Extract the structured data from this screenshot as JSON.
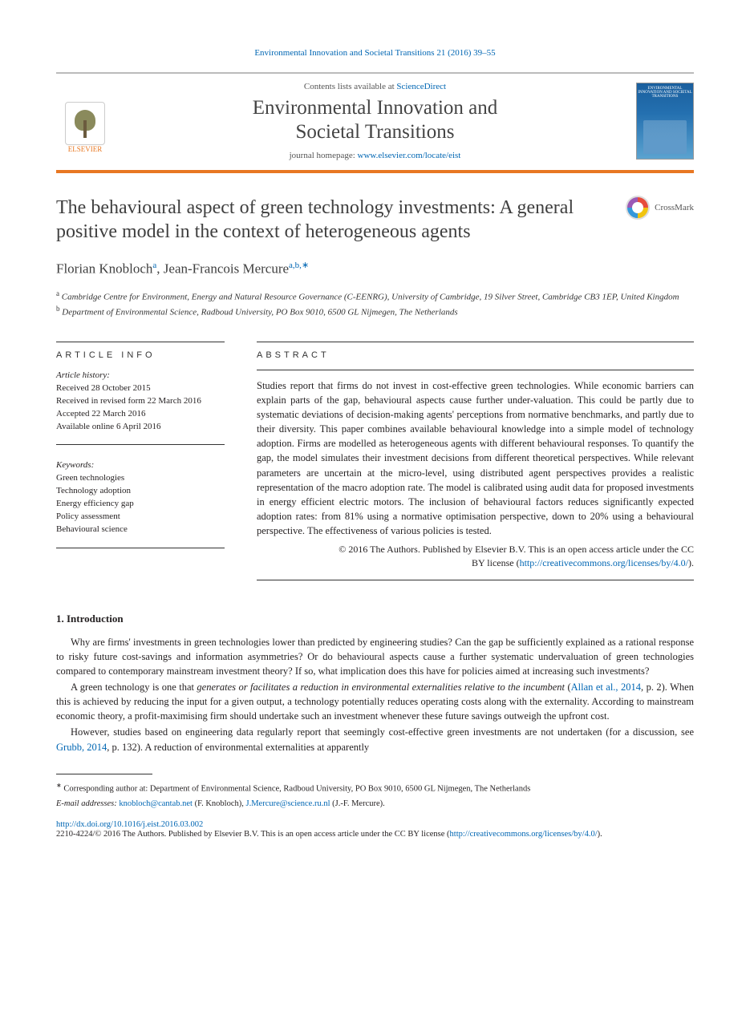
{
  "journal_ref": {
    "text": "Environmental Innovation and Societal Transitions 21 (2016) 39–55",
    "link_color": "#0066b3"
  },
  "header": {
    "contents_prefix": "Contents lists available at ",
    "contents_link": "ScienceDirect",
    "journal_name_line1": "Environmental Innovation and",
    "journal_name_line2": "Societal Transitions",
    "homepage_prefix": "journal homepage: ",
    "homepage_url": "www.elsevier.com/locate/eist",
    "publisher_logo_label": "ELSEVIER",
    "cover_label": "ENVIRONMENTAL INNOVATION AND SOCIETAL TRANSITIONS"
  },
  "article": {
    "title": "The behavioural aspect of green technology investments: A general positive model in the context of heterogeneous agents",
    "crossmark_label": "CrossMark",
    "authors_html": "Florian Knobloch",
    "author1_supers": "a",
    "author_sep": ", ",
    "author2": "Jean-Francois Mercure",
    "author2_supers": "a,b,",
    "corr_marker": "∗",
    "affiliations": [
      {
        "marker": "a",
        "text": "Cambridge Centre for Environment, Energy and Natural Resource Governance (C-EENRG), University of Cambridge, 19 Silver Street, Cambridge CB3 1EP, United Kingdom"
      },
      {
        "marker": "b",
        "text": "Department of Environmental Science, Radboud University, PO Box 9010, 6500 GL Nijmegen, The Netherlands"
      }
    ]
  },
  "info": {
    "heading": "article info",
    "history_label": "Article history:",
    "history_lines": [
      "Received 28 October 2015",
      "Received in revised form 22 March 2016",
      "Accepted 22 March 2016",
      "Available online 6 April 2016"
    ],
    "keywords_label": "Keywords:",
    "keywords": [
      "Green technologies",
      "Technology adoption",
      "Energy efficiency gap",
      "Policy assessment",
      "Behavioural science"
    ]
  },
  "abstract": {
    "heading": "abstract",
    "text": "Studies report that firms do not invest in cost-effective green technologies. While economic barriers can explain parts of the gap, behavioural aspects cause further under-valuation. This could be partly due to systematic deviations of decision-making agents' perceptions from normative benchmarks, and partly due to their diversity. This paper combines available behavioural knowledge into a simple model of technology adoption. Firms are modelled as heterogeneous agents with different behavioural responses. To quantify the gap, the model simulates their investment decisions from different theoretical perspectives. While relevant parameters are uncertain at the micro-level, using distributed agent perspectives provides a realistic representation of the macro adoption rate. The model is calibrated using audit data for proposed investments in energy efficient electric motors. The inclusion of behavioural factors reduces significantly expected adoption rates: from 81% using a normative optimisation perspective, down to 20% using a behavioural perspective. The effectiveness of various policies is tested.",
    "copyright_line1": "© 2016 The Authors. Published by Elsevier B.V. This is an open access article under the CC",
    "copyright_line2_prefix": "BY license (",
    "copyright_url": "http://creativecommons.org/licenses/by/4.0/",
    "copyright_line2_suffix": ")."
  },
  "body": {
    "section_number": "1.",
    "section_title": "Introduction",
    "paragraphs": [
      "Why are firms' investments in green technologies lower than predicted by engineering studies? Can the gap be sufficiently explained as a rational response to risky future cost-savings and information asymmetries? Or do behavioural aspects cause a further systematic undervaluation of green technologies compared to contemporary mainstream investment theory? If so, what implication does this have for policies aimed at increasing such investments?",
      "A green technology is one that <em>generates or facilitates a reduction in environmental externalities relative to the incumbent</em> (<a>Allan et al., 2014</a>, p. 2). When this is achieved by reducing the input for a given output, a technology potentially reduces operating costs along with the externality. According to mainstream economic theory, a profit-maximising firm should undertake such an investment whenever these future savings outweigh the upfront cost.",
      "However, studies based on engineering data regularly report that seemingly cost-effective green investments are not undertaken (for a discussion, see <a>Grubb, 2014</a>, p. 132). A reduction of environmental externalities at apparently"
    ]
  },
  "footnotes": {
    "corr_marker": "∗",
    "corr_text": "Corresponding author at: Department of Environmental Science, Radboud University, PO Box 9010, 6500 GL Nijmegen, The Netherlands",
    "email_label": "E-mail addresses:",
    "email1": "knobloch@cantab.net",
    "email1_name": " (F. Knobloch), ",
    "email2": "J.Mercure@science.ru.nl",
    "email2_name": " (J.-F. Mercure)."
  },
  "footer": {
    "doi": "http://dx.doi.org/10.1016/j.eist.2016.03.002",
    "issn_line_prefix": "2210-4224/© 2016 The Authors. Published by Elsevier B.V. This is an open access article under the CC BY license (",
    "issn_url": "http://creativecommons.org/licenses/by/4.0/",
    "issn_line_suffix": ")."
  },
  "colors": {
    "link": "#0066b3",
    "accent": "#e87722",
    "text": "#231f20",
    "heading": "#3f3f3f"
  },
  "typography": {
    "body_font": "Georgia, 'Times New Roman', serif",
    "body_size_pt": 12.5,
    "title_size_pt": 24,
    "author_size_pt": 17,
    "affil_size_pt": 11,
    "footnote_size_pt": 10.5
  }
}
